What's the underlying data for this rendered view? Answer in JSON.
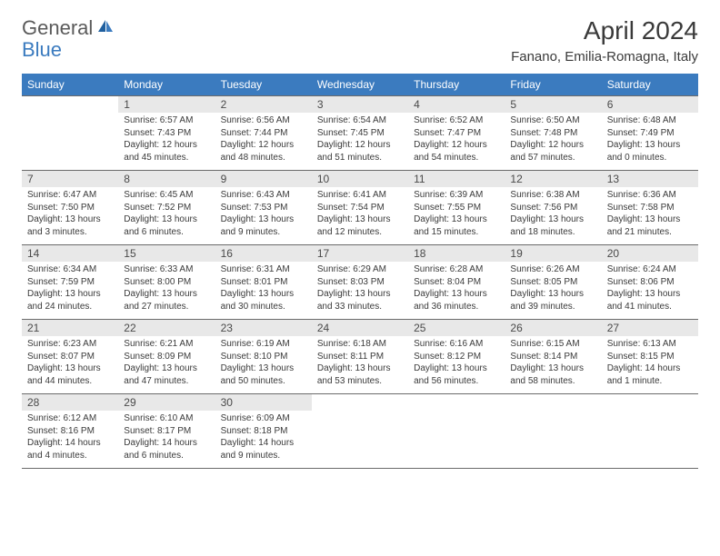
{
  "logo": {
    "general": "General",
    "blue": "Blue"
  },
  "title": "April 2024",
  "location": "Fanano, Emilia-Romagna, Italy",
  "colors": {
    "header_bg": "#3b7bbf",
    "header_fg": "#ffffff",
    "daynum_bg": "#e8e8e8",
    "border": "#6b6b6b",
    "text": "#3a3a3a"
  },
  "day_headers": [
    "Sunday",
    "Monday",
    "Tuesday",
    "Wednesday",
    "Thursday",
    "Friday",
    "Saturday"
  ],
  "weeks": [
    [
      {
        "n": "",
        "sr": "",
        "ss": "",
        "dl": ""
      },
      {
        "n": "1",
        "sr": "Sunrise: 6:57 AM",
        "ss": "Sunset: 7:43 PM",
        "dl": "Daylight: 12 hours and 45 minutes."
      },
      {
        "n": "2",
        "sr": "Sunrise: 6:56 AM",
        "ss": "Sunset: 7:44 PM",
        "dl": "Daylight: 12 hours and 48 minutes."
      },
      {
        "n": "3",
        "sr": "Sunrise: 6:54 AM",
        "ss": "Sunset: 7:45 PM",
        "dl": "Daylight: 12 hours and 51 minutes."
      },
      {
        "n": "4",
        "sr": "Sunrise: 6:52 AM",
        "ss": "Sunset: 7:47 PM",
        "dl": "Daylight: 12 hours and 54 minutes."
      },
      {
        "n": "5",
        "sr": "Sunrise: 6:50 AM",
        "ss": "Sunset: 7:48 PM",
        "dl": "Daylight: 12 hours and 57 minutes."
      },
      {
        "n": "6",
        "sr": "Sunrise: 6:48 AM",
        "ss": "Sunset: 7:49 PM",
        "dl": "Daylight: 13 hours and 0 minutes."
      }
    ],
    [
      {
        "n": "7",
        "sr": "Sunrise: 6:47 AM",
        "ss": "Sunset: 7:50 PM",
        "dl": "Daylight: 13 hours and 3 minutes."
      },
      {
        "n": "8",
        "sr": "Sunrise: 6:45 AM",
        "ss": "Sunset: 7:52 PM",
        "dl": "Daylight: 13 hours and 6 minutes."
      },
      {
        "n": "9",
        "sr": "Sunrise: 6:43 AM",
        "ss": "Sunset: 7:53 PM",
        "dl": "Daylight: 13 hours and 9 minutes."
      },
      {
        "n": "10",
        "sr": "Sunrise: 6:41 AM",
        "ss": "Sunset: 7:54 PM",
        "dl": "Daylight: 13 hours and 12 minutes."
      },
      {
        "n": "11",
        "sr": "Sunrise: 6:39 AM",
        "ss": "Sunset: 7:55 PM",
        "dl": "Daylight: 13 hours and 15 minutes."
      },
      {
        "n": "12",
        "sr": "Sunrise: 6:38 AM",
        "ss": "Sunset: 7:56 PM",
        "dl": "Daylight: 13 hours and 18 minutes."
      },
      {
        "n": "13",
        "sr": "Sunrise: 6:36 AM",
        "ss": "Sunset: 7:58 PM",
        "dl": "Daylight: 13 hours and 21 minutes."
      }
    ],
    [
      {
        "n": "14",
        "sr": "Sunrise: 6:34 AM",
        "ss": "Sunset: 7:59 PM",
        "dl": "Daylight: 13 hours and 24 minutes."
      },
      {
        "n": "15",
        "sr": "Sunrise: 6:33 AM",
        "ss": "Sunset: 8:00 PM",
        "dl": "Daylight: 13 hours and 27 minutes."
      },
      {
        "n": "16",
        "sr": "Sunrise: 6:31 AM",
        "ss": "Sunset: 8:01 PM",
        "dl": "Daylight: 13 hours and 30 minutes."
      },
      {
        "n": "17",
        "sr": "Sunrise: 6:29 AM",
        "ss": "Sunset: 8:03 PM",
        "dl": "Daylight: 13 hours and 33 minutes."
      },
      {
        "n": "18",
        "sr": "Sunrise: 6:28 AM",
        "ss": "Sunset: 8:04 PM",
        "dl": "Daylight: 13 hours and 36 minutes."
      },
      {
        "n": "19",
        "sr": "Sunrise: 6:26 AM",
        "ss": "Sunset: 8:05 PM",
        "dl": "Daylight: 13 hours and 39 minutes."
      },
      {
        "n": "20",
        "sr": "Sunrise: 6:24 AM",
        "ss": "Sunset: 8:06 PM",
        "dl": "Daylight: 13 hours and 41 minutes."
      }
    ],
    [
      {
        "n": "21",
        "sr": "Sunrise: 6:23 AM",
        "ss": "Sunset: 8:07 PM",
        "dl": "Daylight: 13 hours and 44 minutes."
      },
      {
        "n": "22",
        "sr": "Sunrise: 6:21 AM",
        "ss": "Sunset: 8:09 PM",
        "dl": "Daylight: 13 hours and 47 minutes."
      },
      {
        "n": "23",
        "sr": "Sunrise: 6:19 AM",
        "ss": "Sunset: 8:10 PM",
        "dl": "Daylight: 13 hours and 50 minutes."
      },
      {
        "n": "24",
        "sr": "Sunrise: 6:18 AM",
        "ss": "Sunset: 8:11 PM",
        "dl": "Daylight: 13 hours and 53 minutes."
      },
      {
        "n": "25",
        "sr": "Sunrise: 6:16 AM",
        "ss": "Sunset: 8:12 PM",
        "dl": "Daylight: 13 hours and 56 minutes."
      },
      {
        "n": "26",
        "sr": "Sunrise: 6:15 AM",
        "ss": "Sunset: 8:14 PM",
        "dl": "Daylight: 13 hours and 58 minutes."
      },
      {
        "n": "27",
        "sr": "Sunrise: 6:13 AM",
        "ss": "Sunset: 8:15 PM",
        "dl": "Daylight: 14 hours and 1 minute."
      }
    ],
    [
      {
        "n": "28",
        "sr": "Sunrise: 6:12 AM",
        "ss": "Sunset: 8:16 PM",
        "dl": "Daylight: 14 hours and 4 minutes."
      },
      {
        "n": "29",
        "sr": "Sunrise: 6:10 AM",
        "ss": "Sunset: 8:17 PM",
        "dl": "Daylight: 14 hours and 6 minutes."
      },
      {
        "n": "30",
        "sr": "Sunrise: 6:09 AM",
        "ss": "Sunset: 8:18 PM",
        "dl": "Daylight: 14 hours and 9 minutes."
      },
      {
        "n": "",
        "sr": "",
        "ss": "",
        "dl": ""
      },
      {
        "n": "",
        "sr": "",
        "ss": "",
        "dl": ""
      },
      {
        "n": "",
        "sr": "",
        "ss": "",
        "dl": ""
      },
      {
        "n": "",
        "sr": "",
        "ss": "",
        "dl": ""
      }
    ]
  ]
}
